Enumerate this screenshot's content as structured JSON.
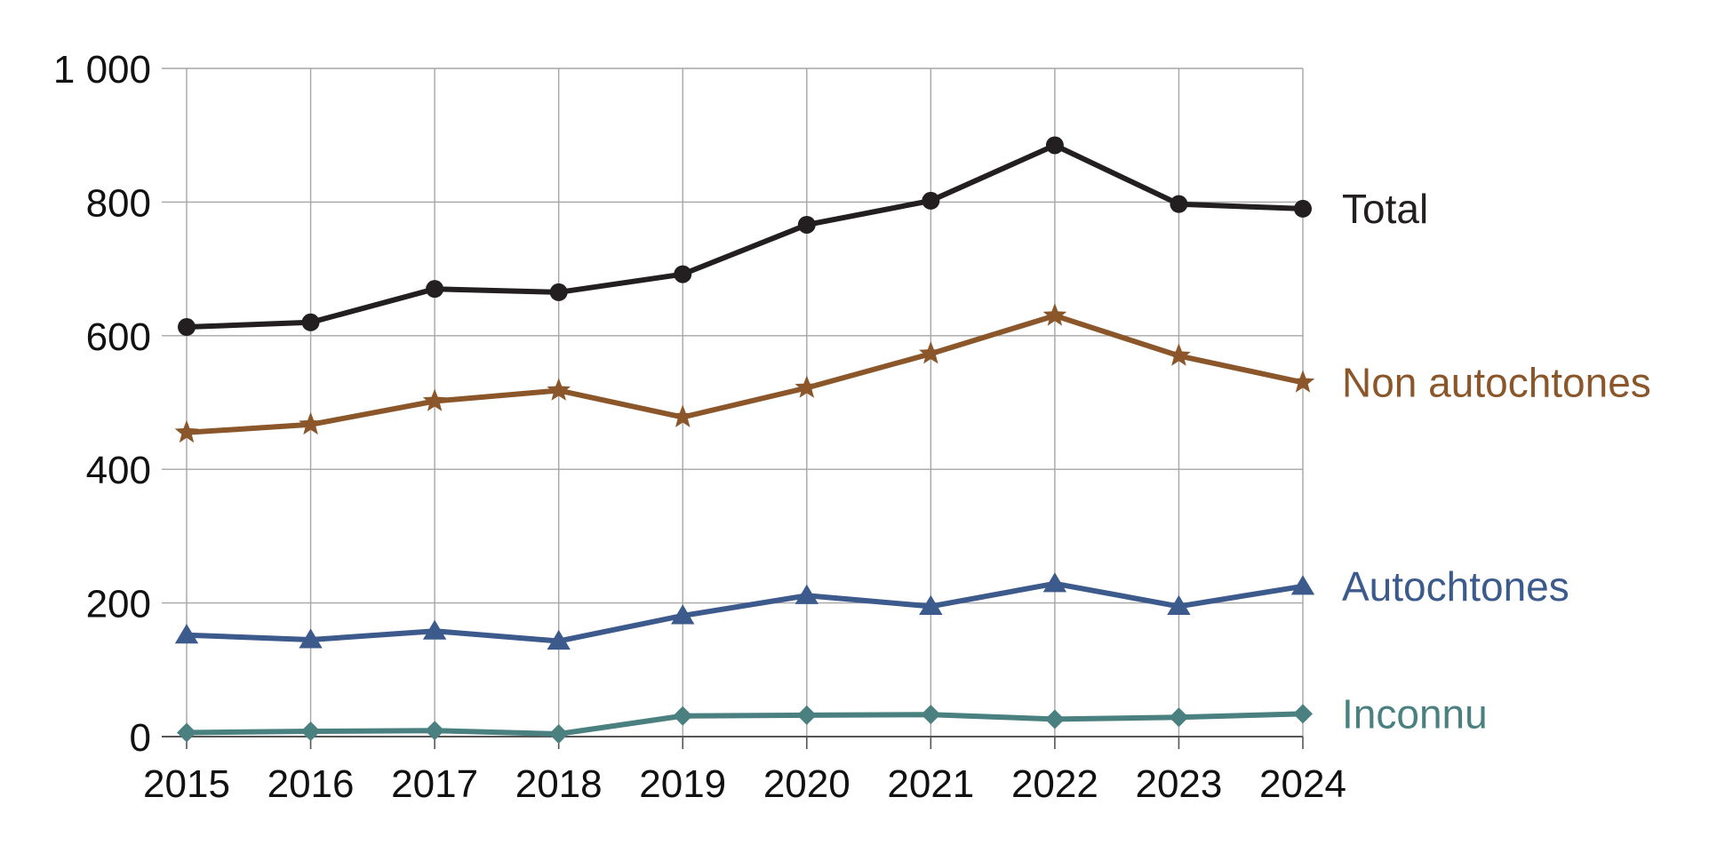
{
  "chart_data": {
    "type": "line",
    "title": "",
    "xlabel": "",
    "ylabel": "",
    "x": [
      "2015",
      "2016",
      "2017",
      "2018",
      "2019",
      "2020",
      "2021",
      "2022",
      "2023",
      "2024"
    ],
    "ylim": [
      0,
      1000
    ],
    "y_ticks": [
      0,
      200,
      400,
      600,
      800,
      1000
    ],
    "y_tick_labels": [
      "0",
      "200",
      "400",
      "600",
      "800",
      "1 000"
    ],
    "grid": true,
    "legend": "direct labels at right end of each line",
    "series": [
      {
        "name": "Total",
        "color": "#231f20",
        "marker": "circle",
        "values": [
          613,
          620,
          670,
          665,
          692,
          766,
          802,
          885,
          797,
          790
        ]
      },
      {
        "name": "Non autochtones",
        "color": "#8b572a",
        "marker": "star",
        "values": [
          455,
          467,
          502,
          518,
          478,
          522,
          573,
          630,
          570,
          530
        ]
      },
      {
        "name": "Autochtones",
        "color": "#3d5a8c",
        "marker": "triangle",
        "values": [
          152,
          145,
          158,
          143,
          181,
          211,
          195,
          229,
          195,
          225
        ]
      },
      {
        "name": "Inconnu",
        "color": "#4a8080",
        "marker": "diamond",
        "values": [
          6,
          8,
          9,
          4,
          31,
          32,
          33,
          26,
          29,
          34
        ]
      }
    ]
  }
}
